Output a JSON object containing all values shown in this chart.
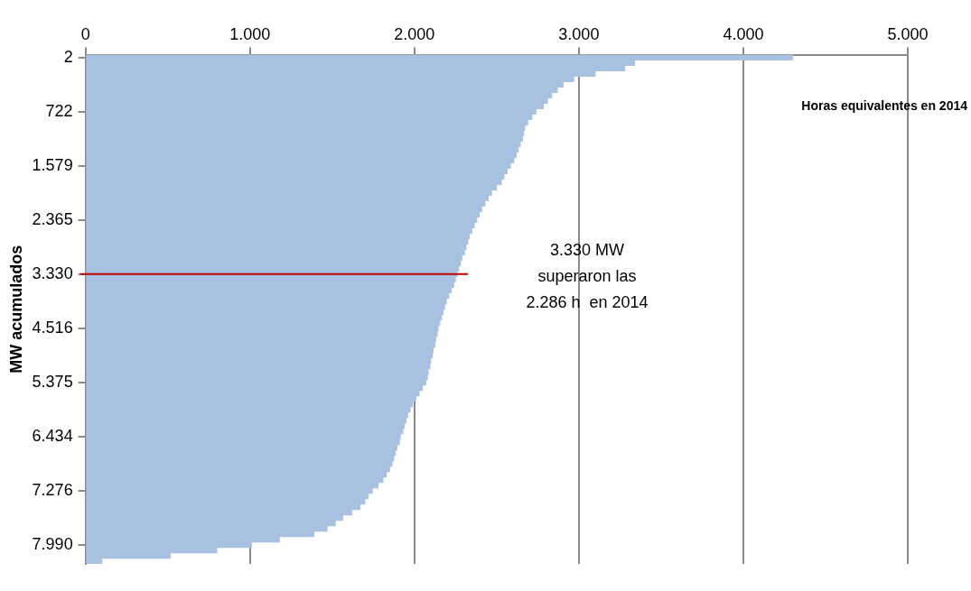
{
  "chart_data": {
    "type": "bar",
    "orientation": "horizontal",
    "title": "Horas equivalentes en 2014",
    "ylabel": "MW acumulados",
    "categories": [
      "2",
      null,
      null,
      null,
      null,
      null,
      null,
      null,
      null,
      null,
      "722",
      null,
      null,
      null,
      null,
      null,
      null,
      null,
      null,
      null,
      "1.579",
      null,
      null,
      null,
      null,
      null,
      null,
      null,
      null,
      null,
      "2.365",
      null,
      null,
      null,
      null,
      null,
      null,
      null,
      null,
      null,
      "3.330",
      null,
      null,
      null,
      null,
      null,
      null,
      null,
      null,
      null,
      "4.516",
      null,
      null,
      null,
      null,
      null,
      null,
      null,
      null,
      null,
      "5.375",
      null,
      null,
      null,
      null,
      null,
      null,
      null,
      null,
      null,
      "6.434",
      null,
      null,
      null,
      null,
      null,
      null,
      null,
      null,
      null,
      "7.276",
      null,
      null,
      null,
      null,
      null,
      null,
      null,
      null,
      null,
      "7.990",
      null,
      null,
      null
    ],
    "values": [
      4300,
      3340,
      3280,
      3100,
      2970,
      2905,
      2870,
      2835,
      2810,
      2785,
      2740,
      2715,
      2690,
      2672,
      2665,
      2658,
      2645,
      2632,
      2620,
      2605,
      2585,
      2565,
      2545,
      2530,
      2500,
      2470,
      2450,
      2430,
      2410,
      2395,
      2380,
      2365,
      2350,
      2335,
      2325,
      2315,
      2305,
      2290,
      2280,
      2270,
      2260,
      2250,
      2240,
      2225,
      2210,
      2195,
      2185,
      2175,
      2165,
      2155,
      2145,
      2140,
      2130,
      2125,
      2115,
      2110,
      2100,
      2095,
      2085,
      2080,
      2070,
      2050,
      2030,
      2010,
      1990,
      1975,
      1960,
      1950,
      1940,
      1930,
      1915,
      1910,
      1895,
      1885,
      1875,
      1865,
      1850,
      1830,
      1810,
      1780,
      1745,
      1720,
      1700,
      1670,
      1620,
      1565,
      1520,
      1470,
      1390,
      1180,
      1010,
      800,
      516,
      100
    ],
    "color": "#a9c1e0",
    "xlim": [
      0,
      5000
    ],
    "xticks": [
      0,
      {
        "value": 1000,
        "label": "1.000"
      },
      {
        "value": 2000,
        "label": "2.000"
      },
      {
        "value": 3000,
        "label": "3.000"
      },
      {
        "value": 4000,
        "label": "4.000"
      },
      {
        "value": 5000,
        "label": "5.000"
      }
    ],
    "grid": "x",
    "legend": false,
    "ref_lines": [
      {
        "axis": "y",
        "value": "3.330",
        "color": "#c00000"
      }
    ],
    "annotations": [
      "3.330 MW\nsuperaron las\n2.286 h  en 2014"
    ]
  }
}
